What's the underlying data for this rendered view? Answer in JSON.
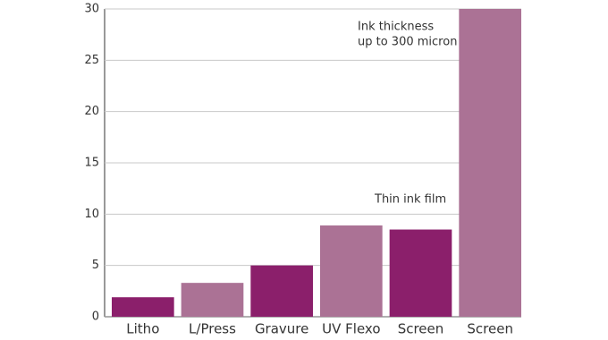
{
  "chart_data": {
    "type": "bar",
    "categories": [
      "Litho",
      "L/Press",
      "Gravure",
      "UV Flexo",
      "Screen",
      "Screen"
    ],
    "values": [
      1.9,
      3.3,
      5,
      8.9,
      8.5,
      30
    ],
    "colors": [
      "#8b1f6b",
      "#ab7295",
      "#8b1f6b",
      "#ab7295",
      "#8b1f6b",
      "#ab7295"
    ],
    "ylim": [
      0,
      30
    ],
    "yticks": [
      0,
      5,
      10,
      15,
      20,
      25,
      30
    ],
    "grid": true,
    "annotations": [
      "Ink thickness",
      "up to 300 micron",
      "Thin ink film"
    ]
  }
}
